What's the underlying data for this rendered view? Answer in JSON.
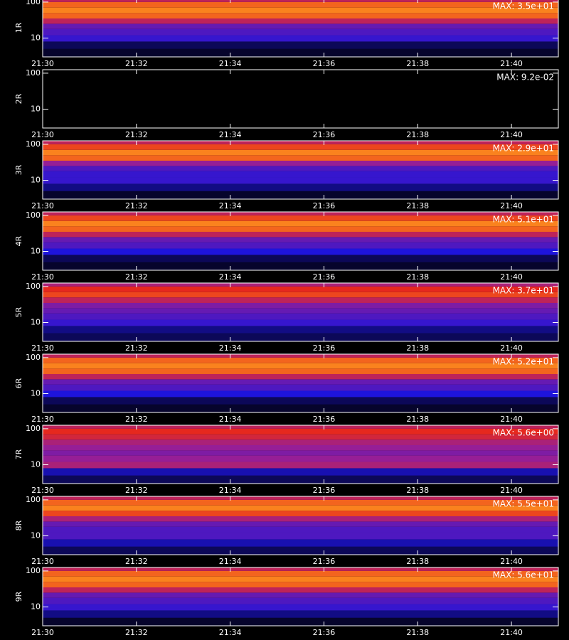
{
  "chart_data": [
    {
      "type": "heatmap",
      "ylabel": "1R",
      "annotation": "MAX: 3.5e+01",
      "log_y": true,
      "xlim": [
        1290,
        1301
      ],
      "ylim": [
        3,
        125
      ],
      "xticks": [
        {
          "value": 1290,
          "label": "21:30"
        },
        {
          "value": 1292,
          "label": "21:32"
        },
        {
          "value": 1294,
          "label": "21:34"
        },
        {
          "value": 1296,
          "label": "21:36"
        },
        {
          "value": 1298,
          "label": "21:38"
        },
        {
          "value": 1300,
          "label": "21:40"
        }
      ],
      "yticks": [
        10,
        100
      ],
      "y_bins": [
        3,
        5,
        8,
        12,
        18,
        25,
        35,
        50,
        70,
        100,
        125
      ],
      "values": [
        0.05,
        0.1,
        0.3,
        0.35,
        0.4,
        0.6,
        0.8,
        0.85,
        0.8,
        0.6
      ]
    },
    {
      "type": "heatmap",
      "ylabel": "2R",
      "annotation": "MAX: 9.2e-02",
      "log_y": true,
      "xlim": [
        1290,
        1301
      ],
      "ylim": [
        3,
        125
      ],
      "xticks": [
        {
          "value": 1290,
          "label": "21:30"
        },
        {
          "value": 1292,
          "label": "21:32"
        },
        {
          "value": 1294,
          "label": "21:34"
        },
        {
          "value": 1296,
          "label": "21:36"
        },
        {
          "value": 1298,
          "label": "21:38"
        },
        {
          "value": 1300,
          "label": "21:40"
        }
      ],
      "yticks": [
        10,
        100
      ],
      "y_bins": [
        3,
        5,
        8,
        12,
        18,
        25,
        35,
        50,
        70,
        100,
        125
      ],
      "values": [
        0,
        0,
        0,
        0,
        0,
        0,
        0,
        0,
        0,
        0
      ]
    },
    {
      "type": "heatmap",
      "ylabel": "3R",
      "annotation": "MAX: 2.9e+01",
      "log_y": true,
      "xlim": [
        1290,
        1301
      ],
      "ylim": [
        3,
        125
      ],
      "xticks": [
        {
          "value": 1290,
          "label": "21:30"
        },
        {
          "value": 1292,
          "label": "21:32"
        },
        {
          "value": 1294,
          "label": "21:34"
        },
        {
          "value": 1296,
          "label": "21:36"
        },
        {
          "value": 1298,
          "label": "21:38"
        },
        {
          "value": 1300,
          "label": "21:40"
        }
      ],
      "yticks": [
        10,
        100
      ],
      "y_bins": [
        3,
        5,
        8,
        12,
        18,
        25,
        35,
        50,
        70,
        100,
        125
      ],
      "values": [
        0.05,
        0.15,
        0.3,
        0.3,
        0.35,
        0.5,
        0.8,
        0.85,
        0.75,
        0.6
      ]
    },
    {
      "type": "heatmap",
      "ylabel": "4R",
      "annotation": "MAX: 5.1e+01",
      "log_y": true,
      "xlim": [
        1290,
        1301
      ],
      "ylim": [
        3,
        125
      ],
      "xticks": [
        {
          "value": 1290,
          "label": "21:30"
        },
        {
          "value": 1292,
          "label": "21:32"
        },
        {
          "value": 1294,
          "label": "21:34"
        },
        {
          "value": 1296,
          "label": "21:36"
        },
        {
          "value": 1298,
          "label": "21:38"
        },
        {
          "value": 1300,
          "label": "21:40"
        }
      ],
      "yticks": [
        10,
        100
      ],
      "y_bins": [
        3,
        5,
        8,
        12,
        18,
        25,
        35,
        50,
        70,
        100,
        125
      ],
      "values": [
        0.05,
        0.1,
        0.25,
        0.35,
        0.4,
        0.6,
        0.8,
        0.85,
        0.75,
        0.6
      ]
    },
    {
      "type": "heatmap",
      "ylabel": "5R",
      "annotation": "MAX: 3.7e+01",
      "log_y": true,
      "xlim": [
        1290,
        1301
      ],
      "ylim": [
        3,
        125
      ],
      "xticks": [
        {
          "value": 1290,
          "label": "21:30"
        },
        {
          "value": 1292,
          "label": "21:32"
        },
        {
          "value": 1294,
          "label": "21:34"
        },
        {
          "value": 1296,
          "label": "21:36"
        },
        {
          "value": 1298,
          "label": "21:38"
        },
        {
          "value": 1300,
          "label": "21:40"
        }
      ],
      "yticks": [
        10,
        100
      ],
      "y_bins": [
        3,
        5,
        8,
        12,
        18,
        25,
        35,
        50,
        70,
        100,
        125
      ],
      "values": [
        0.1,
        0.15,
        0.3,
        0.35,
        0.4,
        0.45,
        0.6,
        0.75,
        0.7,
        0.55
      ]
    },
    {
      "type": "heatmap",
      "ylabel": "6R",
      "annotation": "MAX: 5.2e+01",
      "log_y": true,
      "xlim": [
        1290,
        1301
      ],
      "ylim": [
        3,
        125
      ],
      "xticks": [
        {
          "value": 1290,
          "label": "21:30"
        },
        {
          "value": 1292,
          "label": "21:32"
        },
        {
          "value": 1294,
          "label": "21:34"
        },
        {
          "value": 1296,
          "label": "21:36"
        },
        {
          "value": 1298,
          "label": "21:38"
        },
        {
          "value": 1300,
          "label": "21:40"
        }
      ],
      "yticks": [
        10,
        100
      ],
      "y_bins": [
        3,
        5,
        8,
        12,
        18,
        25,
        35,
        50,
        70,
        100,
        125
      ],
      "values": [
        0.05,
        0.1,
        0.25,
        0.35,
        0.4,
        0.6,
        0.8,
        0.85,
        0.8,
        0.6
      ]
    },
    {
      "type": "heatmap",
      "ylabel": "7R",
      "annotation": "MAX: 5.6e+00",
      "log_y": true,
      "xlim": [
        1290,
        1301
      ],
      "ylim": [
        3,
        125
      ],
      "xticks": [
        {
          "value": 1290,
          "label": "21:30"
        },
        {
          "value": 1292,
          "label": "21:32"
        },
        {
          "value": 1294,
          "label": "21:34"
        },
        {
          "value": 1296,
          "label": "21:36"
        },
        {
          "value": 1298,
          "label": "21:38"
        },
        {
          "value": 1300,
          "label": "21:40"
        }
      ],
      "yticks": [
        10,
        100
      ],
      "y_bins": [
        3,
        5,
        8,
        12,
        18,
        25,
        35,
        50,
        70,
        100,
        125
      ],
      "values": [
        0.1,
        0.2,
        0.55,
        0.5,
        0.45,
        0.5,
        0.55,
        0.65,
        0.7,
        0.6
      ]
    },
    {
      "type": "heatmap",
      "ylabel": "8R",
      "annotation": "MAX: 5.5e+01",
      "log_y": true,
      "xlim": [
        1290,
        1301
      ],
      "ylim": [
        3,
        125
      ],
      "xticks": [
        {
          "value": 1290,
          "label": "21:30"
        },
        {
          "value": 1292,
          "label": "21:32"
        },
        {
          "value": 1294,
          "label": "21:34"
        },
        {
          "value": 1296,
          "label": "21:36"
        },
        {
          "value": 1298,
          "label": "21:38"
        },
        {
          "value": 1300,
          "label": "21:40"
        }
      ],
      "yticks": [
        10,
        100
      ],
      "y_bins": [
        3,
        5,
        8,
        12,
        18,
        25,
        35,
        50,
        70,
        100,
        125
      ],
      "values": [
        0.1,
        0.2,
        0.35,
        0.35,
        0.4,
        0.55,
        0.75,
        0.85,
        0.8,
        0.6
      ]
    },
    {
      "type": "heatmap",
      "ylabel": "9R",
      "annotation": "MAX: 5.6e+01",
      "log_y": true,
      "xlim": [
        1290,
        1301
      ],
      "ylim": [
        3,
        125
      ],
      "xticks": [
        {
          "value": 1290,
          "label": "21:30"
        },
        {
          "value": 1292,
          "label": "21:32"
        },
        {
          "value": 1294,
          "label": "21:34"
        },
        {
          "value": 1296,
          "label": "21:36"
        },
        {
          "value": 1298,
          "label": "21:38"
        },
        {
          "value": 1300,
          "label": "21:40"
        }
      ],
      "yticks": [
        10,
        100
      ],
      "y_bins": [
        3,
        5,
        8,
        12,
        18,
        25,
        35,
        50,
        70,
        100,
        125
      ],
      "values": [
        0.05,
        0.15,
        0.3,
        0.35,
        0.4,
        0.6,
        0.8,
        0.85,
        0.8,
        0.6
      ]
    }
  ]
}
